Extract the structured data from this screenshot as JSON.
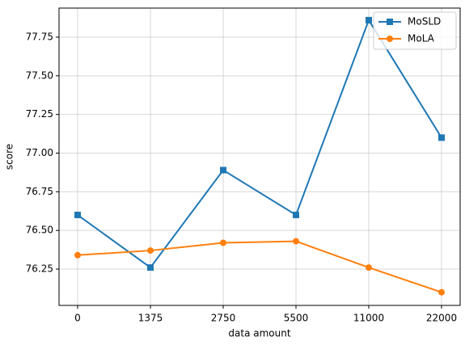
{
  "chart_data": {
    "type": "line",
    "x_label": "data amount",
    "y_label": "score",
    "categories": [
      "0",
      "1375",
      "2750",
      "5500",
      "11000",
      "22000"
    ],
    "series": [
      {
        "name": "MoSLD",
        "color": "#1f77b4",
        "marker": "square",
        "values": [
          76.6,
          76.26,
          76.89,
          76.6,
          77.86,
          77.1
        ]
      },
      {
        "name": "MoLA",
        "color": "#ff7f0e",
        "marker": "circle",
        "values": [
          76.34,
          76.37,
          76.42,
          76.43,
          76.26,
          76.1
        ]
      }
    ],
    "ylim": [
      76.015,
      77.938
    ],
    "yticks": [
      76.25,
      {
        "value": 76.5,
        "label": "76.50"
      },
      76.75,
      {
        "value": 77.0,
        "label": "77.00"
      },
      77.25,
      {
        "value": 77.5,
        "label": "77.50"
      },
      77.75
    ],
    "grid": true,
    "legend": "upper right"
  }
}
